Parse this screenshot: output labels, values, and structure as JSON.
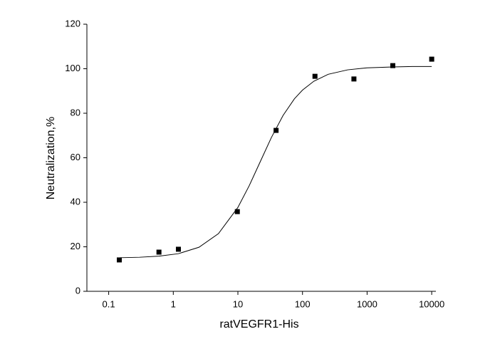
{
  "chart_data": {
    "type": "scatter",
    "x_label": "ratVEGFR1-His",
    "y_label": "Neutralization,%",
    "x_scale": "log",
    "xlim": [
      0.046,
      11600
    ],
    "ylim": [
      0,
      120
    ],
    "xticks": [
      0.1,
      1,
      10,
      100,
      1000,
      10000
    ],
    "yticks": [
      0,
      20,
      40,
      60,
      80,
      100,
      120
    ],
    "grid": false,
    "series": [
      {
        "kind": "points",
        "color": "#000000",
        "x": [
          0.146,
          0.6,
          1.2,
          9.8,
          39,
          156,
          625,
          2500,
          10000
        ],
        "values": [
          14.1,
          17.6,
          18.9,
          35.8,
          72.3,
          96.6,
          95.4,
          101.4,
          104.3
        ]
      },
      {
        "kind": "curve",
        "color": "#000000",
        "x": [
          0.15,
          0.3,
          0.6,
          1.2,
          2.5,
          5,
          10,
          15,
          22,
          33,
          50,
          75,
          100,
          150,
          250,
          500,
          1000,
          2500,
          5000,
          10000
        ],
        "values": [
          15.1,
          15.3,
          15.8,
          16.9,
          19.8,
          25.9,
          37.7,
          47.5,
          58,
          69.1,
          79,
          86.5,
          90.4,
          94.4,
          97.5,
          99.5,
          100.4,
          100.8,
          101,
          101
        ]
      }
    ]
  }
}
